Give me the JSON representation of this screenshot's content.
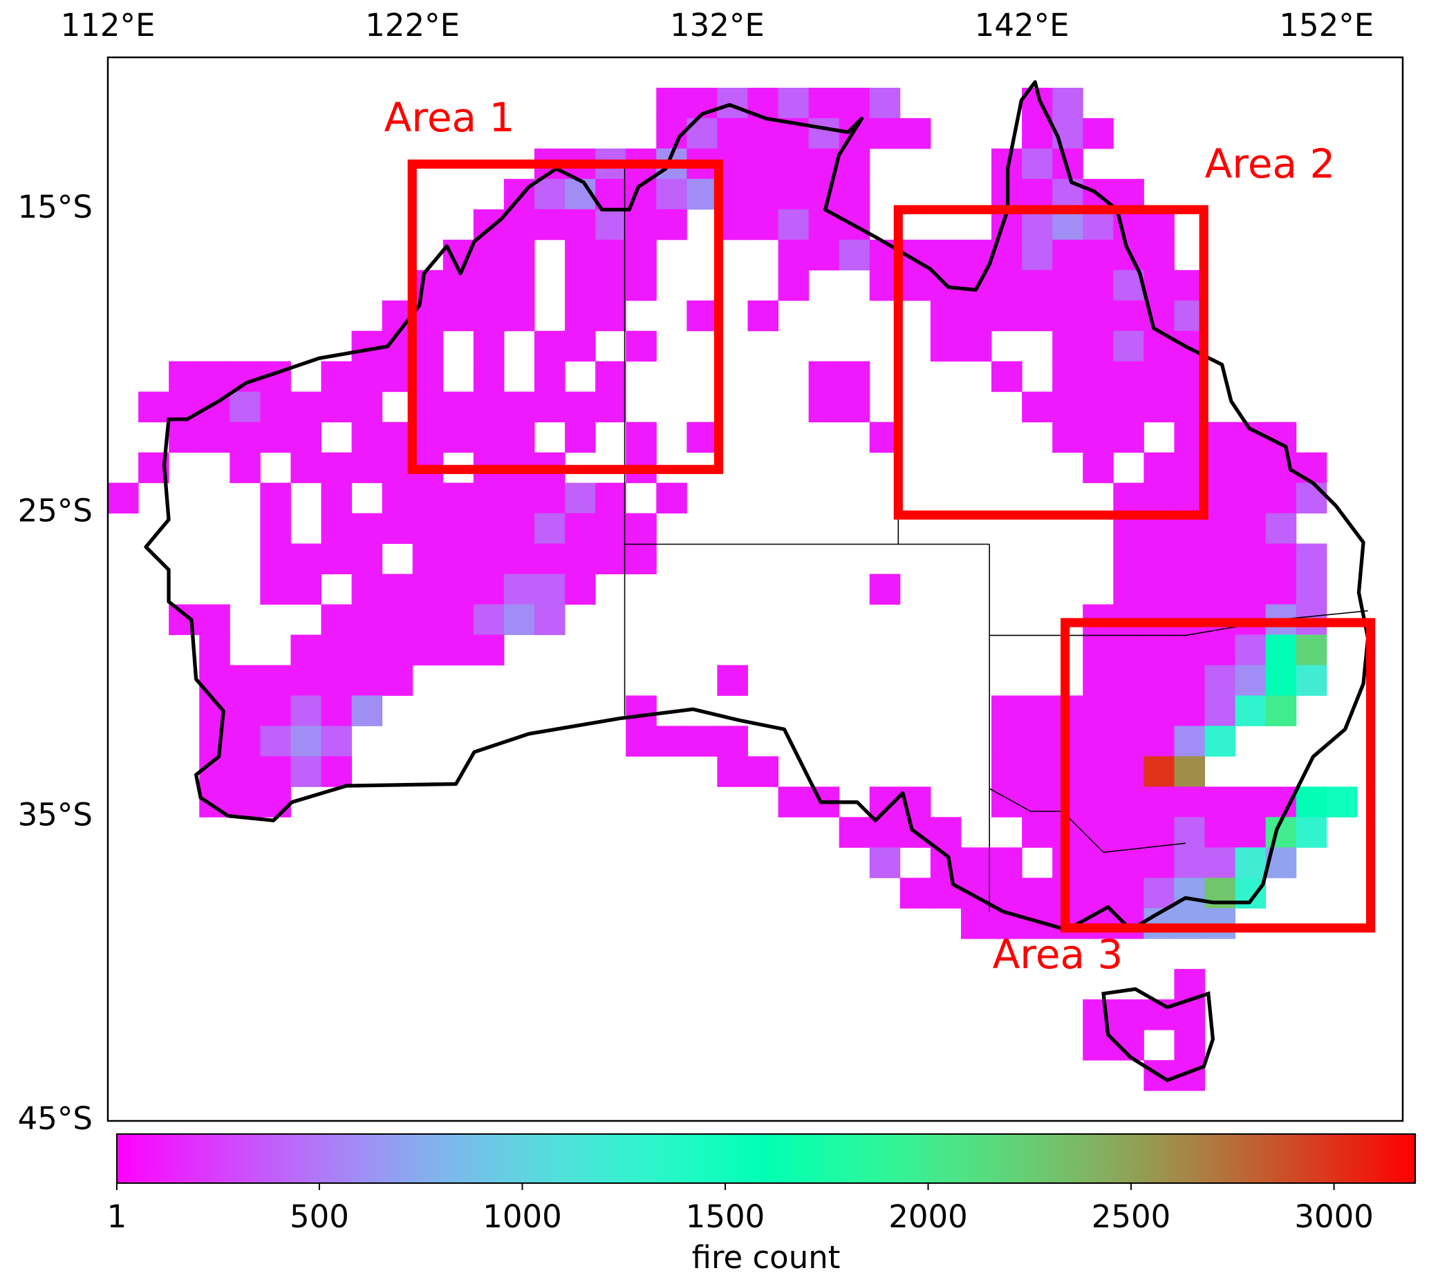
{
  "chart_data": {
    "type": "grid_map",
    "annotations": [
      "Area 1",
      "Area 2",
      "Area 3"
    ],
    "xlim": [
      112,
      154.5
    ],
    "ylim": [
      -45,
      -10
    ],
    "xticks": [
      {
        "value": 112,
        "label": "112°E"
      },
      {
        "value": 122,
        "label": "122°E"
      },
      {
        "value": 132,
        "label": "132°E"
      },
      {
        "value": 142,
        "label": "142°E"
      },
      {
        "value": 152,
        "label": "152°E"
      }
    ],
    "yticks": [
      {
        "value": -15,
        "label": "15°S"
      },
      {
        "value": -25,
        "label": "25°S"
      },
      {
        "value": -35,
        "label": "35°S"
      },
      {
        "value": -45,
        "label": "45°S"
      }
    ],
    "colorbar": {
      "label": "fire count",
      "lim": [
        1,
        3200
      ],
      "ticks": [
        1,
        500,
        1000,
        1500,
        2000,
        2500,
        3000
      ],
      "colormap": "rainbow"
    },
    "cells": [
      {
        "lat": -11,
        "lon": 130,
        "values": [
          100,
          100,
          400,
          100,
          400,
          100,
          100,
          400
        ]
      },
      {
        "lat": -11,
        "lon": 142,
        "values": [
          100,
          400
        ]
      },
      {
        "lat": -12,
        "lon": 130,
        "values": [
          100,
          400,
          100,
          100,
          100,
          400,
          100,
          100,
          100
        ]
      },
      {
        "lat": -12,
        "lon": 142,
        "values": [
          100,
          400,
          100
        ]
      },
      {
        "lat": -13,
        "lon": 126,
        "values": [
          100,
          100,
          400,
          100,
          600,
          100,
          100,
          100,
          100,
          100,
          100
        ]
      },
      {
        "lat": -13,
        "lon": 141,
        "values": [
          100,
          400,
          100
        ]
      },
      {
        "lat": -14,
        "lon": 125,
        "values": [
          100,
          400,
          600,
          100,
          100,
          400,
          600,
          100,
          100,
          100,
          100,
          100
        ]
      },
      {
        "lat": -14,
        "lon": 141,
        "values": [
          100,
          100,
          400,
          100,
          100
        ]
      },
      {
        "lat": -15,
        "lon": 124,
        "values": [
          100,
          100,
          100,
          100,
          400,
          100,
          100,
          null,
          100,
          100,
          400,
          100,
          100
        ]
      },
      {
        "lat": -15,
        "lon": 141,
        "values": [
          100,
          400,
          600,
          400,
          100,
          100
        ]
      },
      {
        "lat": -16,
        "lon": 123,
        "values": [
          100,
          100,
          100,
          null,
          100,
          100,
          100,
          null,
          null,
          null,
          null,
          100,
          100,
          400,
          100,
          100,
          100,
          100,
          100,
          400,
          100,
          100,
          100,
          100
        ]
      },
      {
        "lat": -17,
        "lon": 122,
        "values": [
          100,
          100,
          100,
          100,
          null,
          100,
          100,
          100,
          null,
          null,
          null,
          null,
          100,
          null,
          null,
          100,
          100,
          100,
          100,
          100,
          100,
          100,
          100,
          400,
          100,
          100
        ]
      },
      {
        "lat": -18,
        "lon": 121,
        "values": [
          100,
          100,
          100,
          100,
          100,
          null,
          100,
          100,
          null,
          null,
          100,
          null,
          100,
          null,
          null,
          null,
          null,
          null,
          100,
          100,
          100,
          100,
          100,
          100,
          100,
          100,
          400
        ]
      },
      {
        "lat": -19,
        "lon": 120,
        "values": [
          100,
          100,
          100,
          null,
          100,
          null,
          100,
          100,
          null,
          100,
          null,
          null,
          null,
          null,
          null,
          null,
          null,
          null,
          null,
          100,
          100,
          null,
          null,
          100,
          100,
          400,
          100,
          100
        ]
      },
      {
        "lat": -20,
        "lon": 114,
        "values": [
          100,
          100,
          100,
          100,
          null,
          100,
          100,
          100,
          100,
          null,
          100,
          null,
          100,
          null,
          100,
          null,
          null,
          null,
          null,
          null,
          null,
          100,
          100,
          null,
          null,
          null,
          null,
          100,
          null,
          100,
          100,
          100,
          100,
          100
        ]
      },
      {
        "lat": -21,
        "lon": 113,
        "values": [
          100,
          100,
          100,
          400,
          100,
          100,
          100,
          100,
          null,
          100,
          100,
          100,
          100,
          100,
          100,
          100,
          null,
          null,
          null,
          null,
          null,
          null,
          100,
          100,
          null,
          null,
          null,
          null,
          null,
          100,
          100,
          100,
          100,
          100,
          100
        ]
      },
      {
        "lat": -22,
        "lon": 114,
        "values": [
          100,
          100,
          100,
          100,
          100,
          null,
          100,
          100,
          100,
          100,
          100,
          100,
          null,
          100,
          null,
          100,
          null,
          100,
          null,
          null,
          null,
          null,
          null,
          100,
          null,
          null,
          null,
          null,
          null,
          100,
          100,
          100
        ]
      },
      {
        "lat": -22,
        "lon": 147,
        "values": [
          100,
          100,
          100,
          100
        ]
      },
      {
        "lat": -23,
        "lon": 113,
        "values": [
          100,
          null,
          null,
          100,
          null,
          100,
          100,
          100,
          100,
          100,
          null,
          100,
          100,
          100,
          null,
          null,
          100,
          null,
          null,
          null,
          null,
          null,
          null,
          null,
          null,
          null,
          null,
          null,
          null,
          null,
          null,
          100,
          null,
          100,
          100,
          100,
          100,
          100,
          100
        ]
      },
      {
        "lat": -24,
        "lon": 112,
        "values": [
          100,
          null,
          null,
          null,
          null,
          100,
          null,
          100,
          null,
          100,
          100,
          100,
          100,
          100,
          100,
          400,
          100,
          null,
          100,
          null,
          null,
          null,
          null,
          null,
          null,
          null,
          null,
          null,
          null,
          null,
          null,
          null,
          null,
          100,
          100,
          100,
          100,
          100,
          100,
          400
        ]
      },
      {
        "lat": -25,
        "lon": 113,
        "values": [
          null,
          null,
          null,
          null,
          100,
          null,
          100,
          100,
          100,
          100,
          100,
          100,
          100,
          400,
          100,
          100,
          100,
          null,
          null,
          null,
          null,
          null,
          null,
          null,
          null,
          null,
          null,
          null,
          null,
          null,
          null,
          null,
          100,
          100,
          100,
          100,
          100,
          400
        ]
      },
      {
        "lat": -26,
        "lon": 113,
        "values": [
          null,
          null,
          null,
          null,
          100,
          100,
          100,
          100,
          null,
          100,
          100,
          100,
          100,
          100,
          100,
          100,
          100,
          null,
          null,
          null,
          null,
          null,
          null,
          null,
          null,
          null,
          null,
          null,
          null,
          null,
          null,
          null,
          100,
          100,
          100,
          100,
          100,
          100,
          400
        ]
      },
      {
        "lat": -27,
        "lon": 114,
        "values": [
          null,
          null,
          null,
          100,
          100,
          null,
          100,
          100,
          100,
          100,
          100,
          400,
          400,
          100,
          null,
          null,
          null,
          null,
          null,
          null,
          null,
          null,
          null,
          100,
          null,
          null,
          null,
          null,
          null,
          null,
          null,
          100,
          100,
          100,
          100,
          100,
          100,
          400
        ]
      },
      {
        "lat": -28,
        "lon": 114,
        "values": [
          100,
          100,
          null,
          null,
          null,
          100,
          100,
          100,
          100,
          100,
          400,
          600,
          400,
          null,
          null,
          null,
          null,
          null,
          null,
          null,
          null,
          null,
          null,
          null,
          null,
          null,
          null,
          null,
          null,
          null,
          100,
          100,
          100,
          100,
          100,
          100,
          600,
          400
        ]
      },
      {
        "lat": -29,
        "lon": 115,
        "values": [
          100,
          null,
          null,
          100,
          100,
          100,
          100,
          100,
          100,
          100,
          null,
          null,
          null,
          null,
          null,
          null,
          null,
          null,
          null,
          null,
          null,
          null,
          null,
          null,
          null,
          null,
          null,
          null,
          null,
          100,
          100,
          100,
          100,
          100,
          400,
          1600,
          2200
        ]
      },
      {
        "lat": -30,
        "lon": 115,
        "values": [
          100,
          100,
          100,
          100,
          100,
          100,
          100,
          null,
          null,
          null,
          null,
          null,
          null,
          null,
          null,
          null,
          null,
          100,
          null,
          null,
          null,
          null,
          null,
          null,
          null,
          null,
          null,
          null,
          null,
          100,
          100,
          100,
          100,
          400,
          600,
          1600,
          1200
        ]
      },
      {
        "lat": -31,
        "lon": 115,
        "values": [
          100,
          100,
          100,
          400,
          100,
          600,
          null,
          null,
          null,
          null,
          null,
          null,
          null,
          null,
          100,
          null,
          null,
          null,
          null,
          null,
          null,
          null,
          null,
          null,
          null,
          null,
          100,
          100,
          100,
          100,
          100,
          100,
          100,
          400,
          1300,
          2000
        ]
      },
      {
        "lat": -32,
        "lon": 115,
        "values": [
          100,
          100,
          400,
          600,
          400,
          null,
          null,
          null,
          null,
          null,
          null,
          null,
          null,
          null,
          100,
          100,
          100,
          100,
          null,
          null,
          null,
          null,
          null,
          null,
          null,
          null,
          100,
          100,
          100,
          100,
          100,
          100,
          600,
          1300
        ]
      },
      {
        "lat": -33,
        "lon": 115,
        "values": [
          100,
          100,
          100,
          400,
          100,
          null,
          null,
          null,
          null,
          null,
          null,
          null,
          null,
          null,
          null,
          null,
          null,
          100,
          100,
          null,
          null,
          null,
          null,
          null,
          null,
          null,
          100,
          100,
          100,
          100,
          100,
          3000,
          2600
        ]
      },
      {
        "lat": -34,
        "lon": 115,
        "values": [
          100,
          100,
          100
        ]
      },
      {
        "lat": -34,
        "lon": 134,
        "values": [
          100,
          100,
          null,
          100,
          100,
          null,
          null,
          100,
          100,
          100,
          100,
          100,
          100,
          100,
          100,
          100,
          100,
          1600,
          1500
        ]
      },
      {
        "lat": -35,
        "lon": 136,
        "values": [
          100,
          100,
          100,
          100,
          null,
          null,
          100,
          100,
          100,
          100,
          100,
          400,
          100,
          100,
          2000,
          1300
        ]
      },
      {
        "lat": -36,
        "lon": 137,
        "values": [
          400,
          null,
          100,
          100,
          100,
          null,
          100,
          100,
          100,
          100,
          400,
          400,
          1200,
          700
        ]
      },
      {
        "lat": -37,
        "lon": 138,
        "values": [
          100,
          100,
          100,
          100,
          100,
          100,
          100,
          100,
          400,
          700,
          2300,
          1300
        ]
      },
      {
        "lat": -38,
        "lon": 140,
        "values": [
          100,
          100,
          100,
          100,
          100,
          100,
          700,
          700,
          700
        ]
      },
      {
        "lat": -40,
        "lon": 147,
        "values": [
          100
        ]
      },
      {
        "lat": -41,
        "lon": 144,
        "values": [
          100,
          100,
          100,
          100
        ]
      },
      {
        "lat": -42,
        "lon": 144,
        "values": [
          100,
          100,
          null,
          100
        ]
      },
      {
        "lat": -43,
        "lon": 146,
        "values": [
          100,
          100
        ]
      }
    ]
  }
}
